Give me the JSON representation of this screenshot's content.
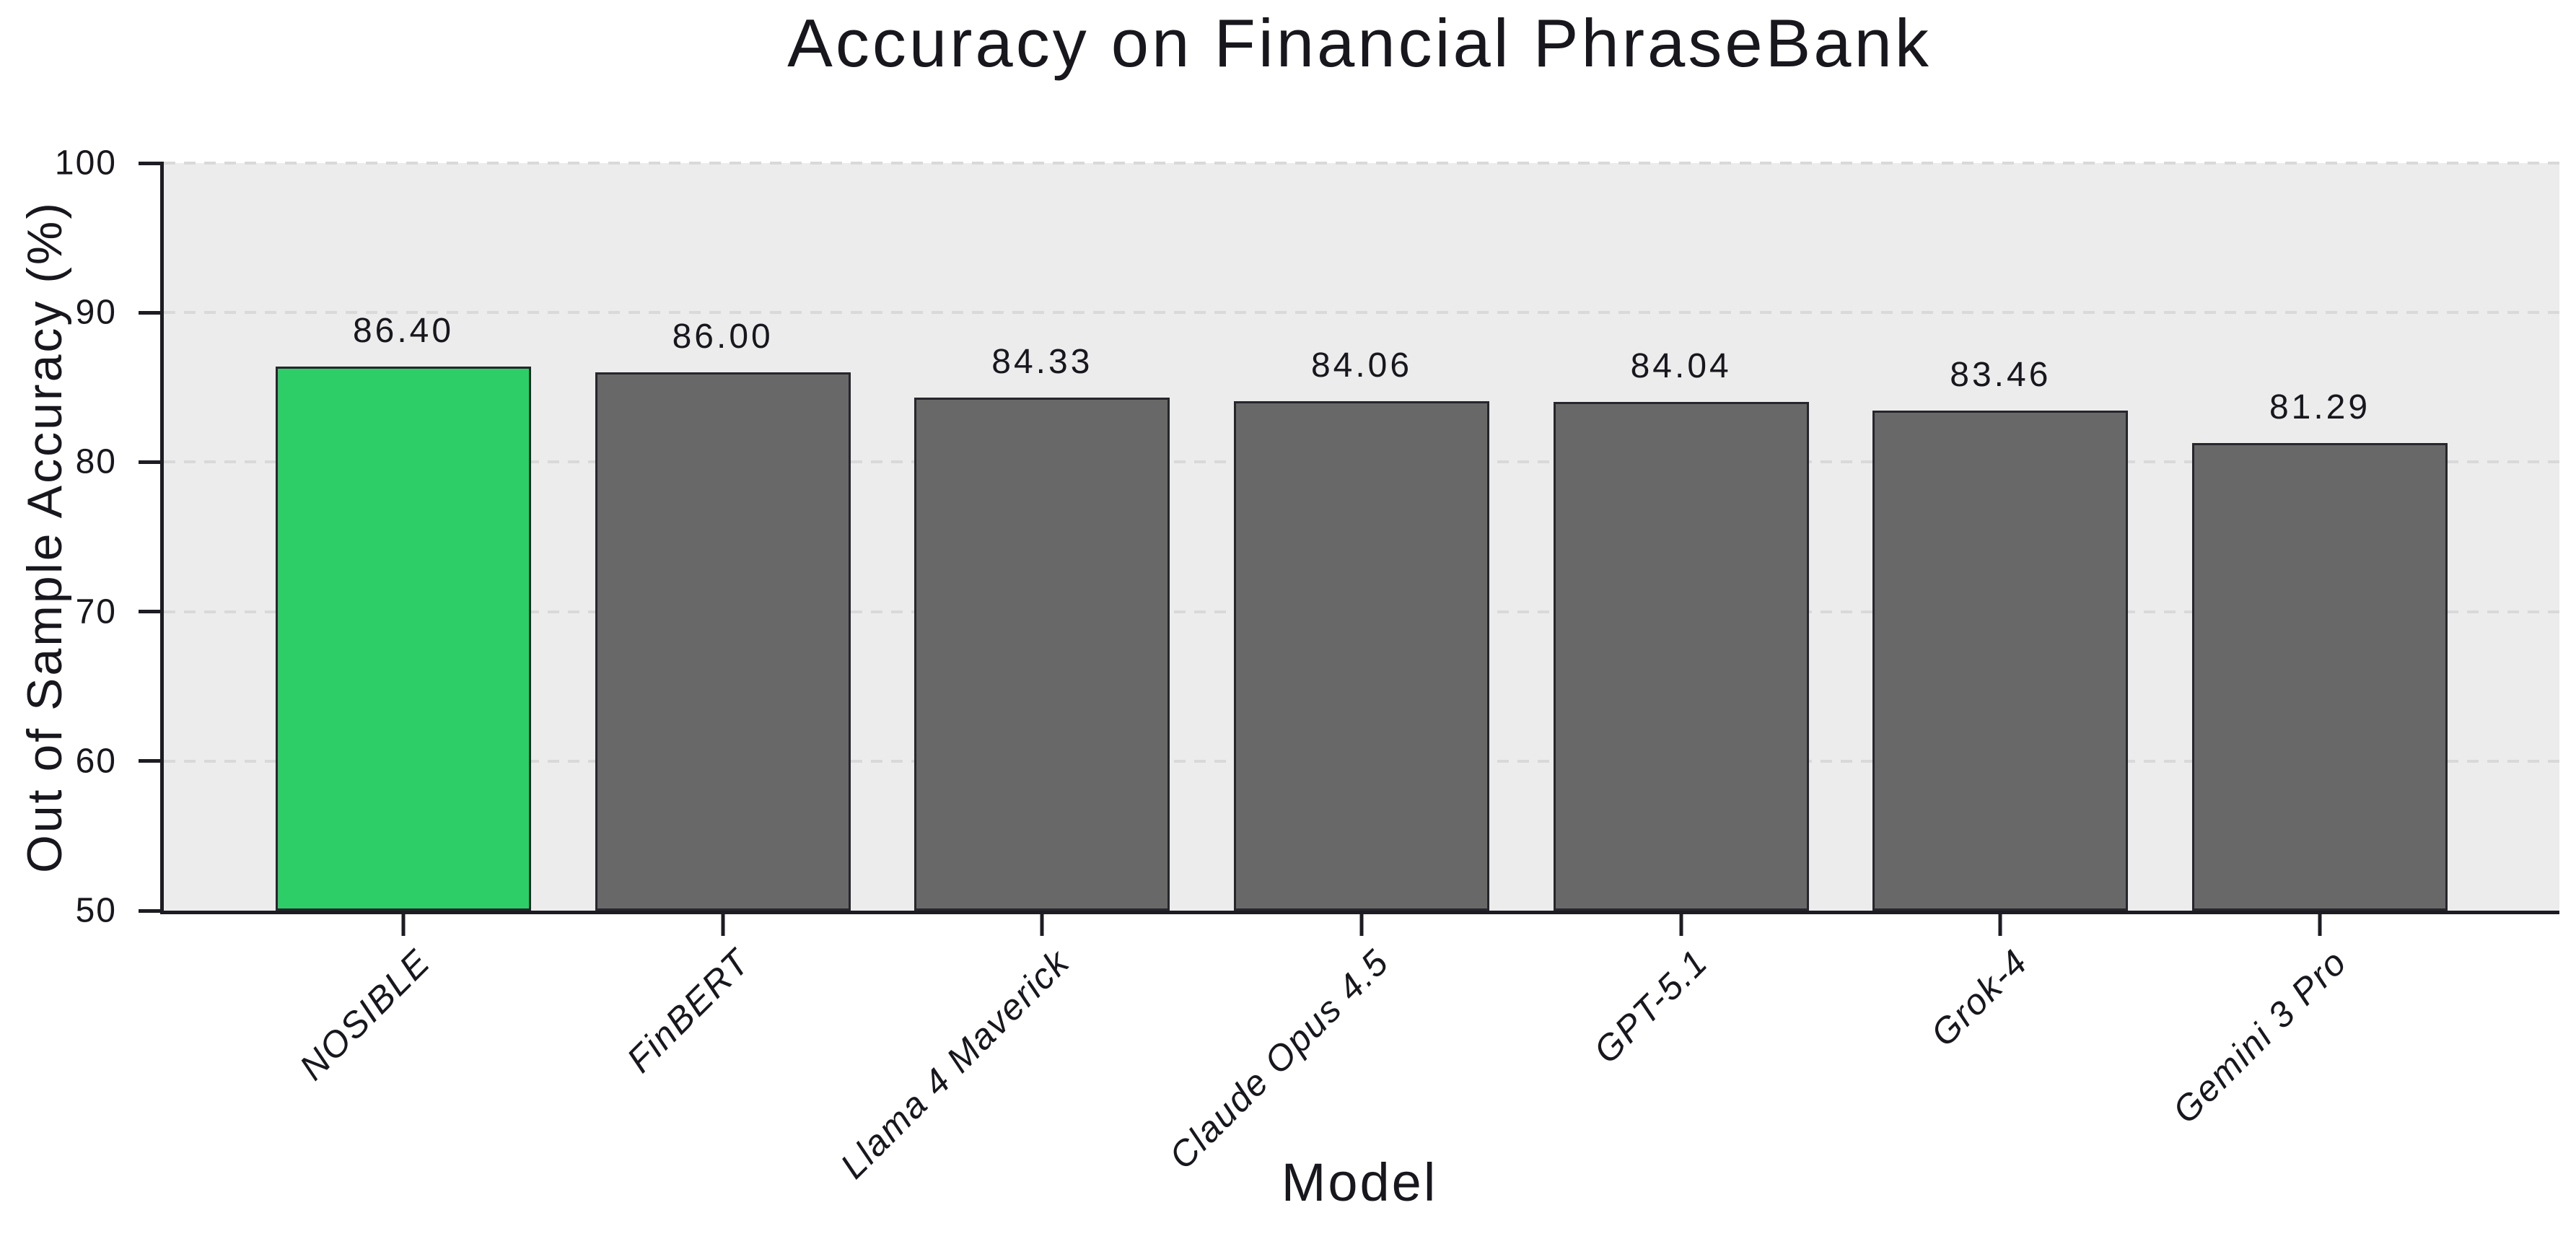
{
  "chart_data": {
    "type": "bar",
    "title": "Accuracy on Financial PhraseBank",
    "xlabel": "Model",
    "ylabel": "Out of Sample Accuracy (%)",
    "categories": [
      "NOSIBLE",
      "FinBERT",
      "Llama 4 Maverick",
      "Claude Opus 4.5",
      "GPT-5.1",
      "Grok-4",
      "Gemini 3 Pro"
    ],
    "values": [
      86.4,
      86.0,
      84.33,
      84.06,
      84.04,
      83.46,
      81.29
    ],
    "value_labels": [
      "86.40",
      "86.00",
      "84.33",
      "84.06",
      "84.04",
      "83.46",
      "81.29"
    ],
    "ylim": [
      50,
      100
    ],
    "yticks": [
      50,
      60,
      70,
      80,
      90,
      100
    ],
    "grid": "horizontal-dashed",
    "legend": "none",
    "highlight_index": 0,
    "bar_width_fraction": 0.8,
    "x_slots": 7.5,
    "x_first_center": 0.75
  },
  "palette": {
    "highlight_bar": "#2dce68",
    "default_bar": "#686868",
    "bar_edge": "#26262c",
    "plot_background": "#ececec",
    "page_background": "#ffffff",
    "grid_line": "#d9d9d9",
    "axis_and_text": "#17171d"
  }
}
